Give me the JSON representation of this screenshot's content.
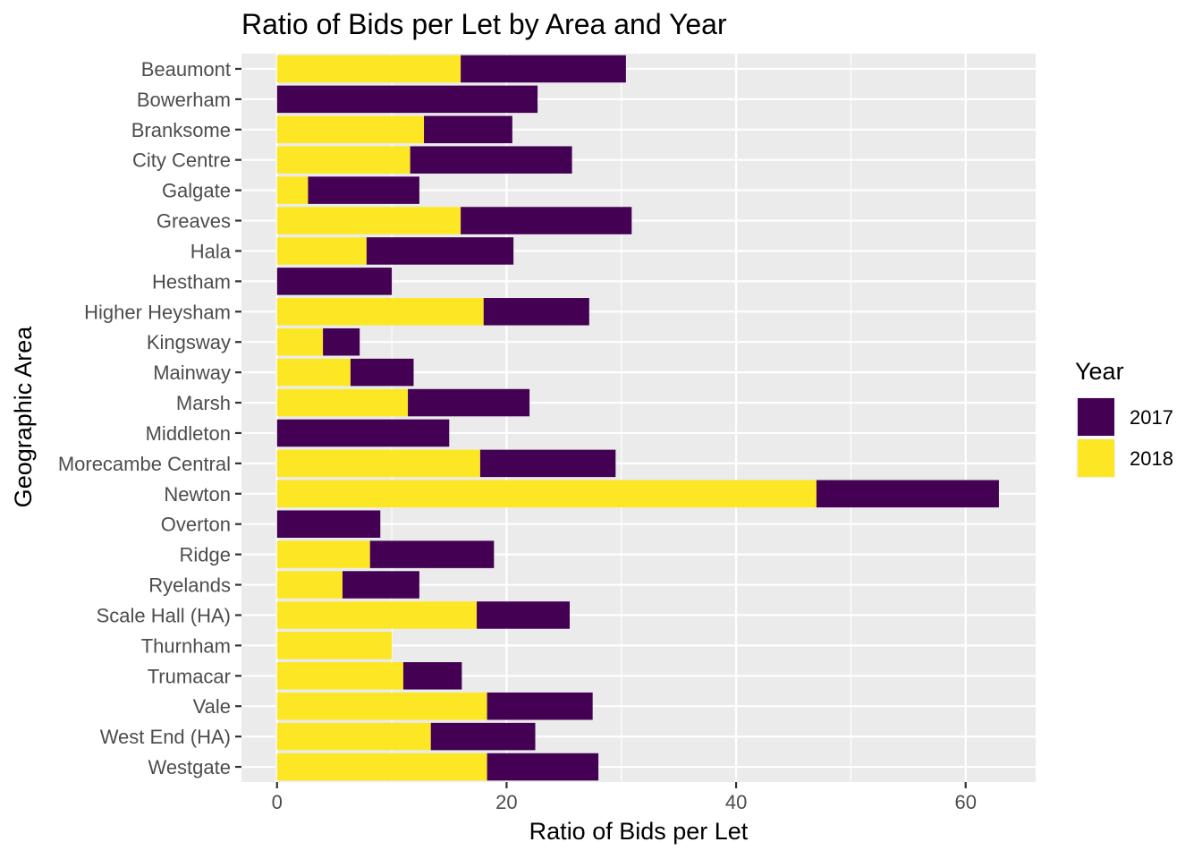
{
  "chart_data": {
    "type": "bar",
    "orientation": "horizontal",
    "stacked": true,
    "title": "Ratio of Bids per Let  by Area and Year",
    "xlabel": "Ratio of Bids per Let",
    "ylabel": "Geographic Area",
    "xlim": [
      -3.1,
      66.1
    ],
    "xticks": [
      0,
      20,
      40,
      60
    ],
    "grid": true,
    "legend": {
      "title": "Year",
      "position": "right",
      "entries": [
        {
          "label": "2017",
          "color": "#440154"
        },
        {
          "label": "2018",
          "color": "#FDE725"
        }
      ]
    },
    "categories": [
      "Beaumont",
      "Bowerham",
      "Branksome",
      "City Centre",
      "Galgate",
      "Greaves",
      "Hala",
      "Hestham",
      "Higher Heysham",
      "Kingsway",
      "Mainway",
      "Marsh",
      "Middleton",
      "Morecambe Central",
      "Newton",
      "Overton",
      "Ridge",
      "Ryelands",
      "Scale Hall (HA)",
      "Thurnham",
      "Trumacar",
      "Vale",
      "West End (HA)",
      "Westgate"
    ],
    "series": [
      {
        "name": "2018",
        "color": "#FDE725",
        "values": [
          16.0,
          0,
          12.8,
          11.6,
          2.7,
          16.0,
          7.8,
          0,
          18.0,
          4.0,
          6.4,
          11.4,
          0,
          17.7,
          47.0,
          0,
          8.1,
          5.7,
          17.4,
          10.0,
          11.0,
          18.3,
          13.4,
          18.3
        ]
      },
      {
        "name": "2017",
        "color": "#440154",
        "values": [
          14.4,
          22.7,
          7.7,
          14.1,
          9.7,
          14.9,
          12.8,
          10.0,
          9.2,
          3.2,
          5.5,
          10.6,
          15.0,
          11.8,
          15.9,
          9.0,
          10.8,
          6.7,
          8.1,
          0,
          5.1,
          9.2,
          9.1,
          9.7
        ]
      }
    ]
  }
}
